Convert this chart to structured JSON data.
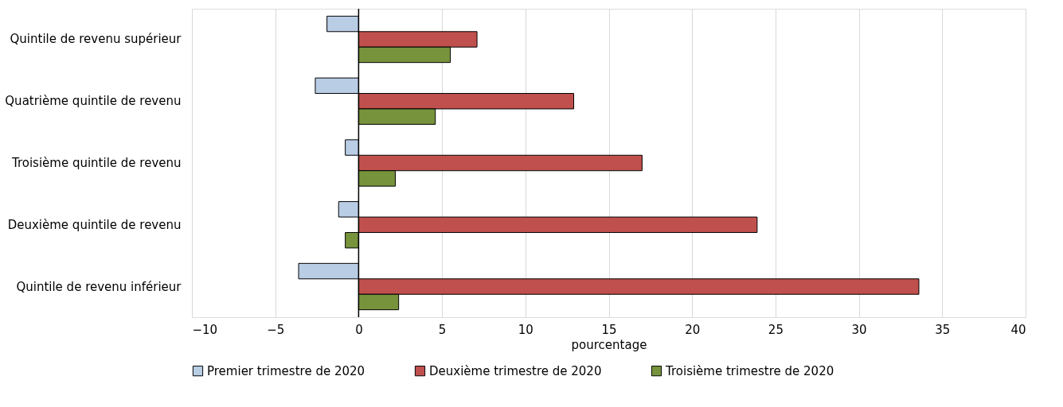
{
  "chart_data": {
    "type": "bar",
    "orientation": "horizontal",
    "xlabel": "pourcentage",
    "categories": [
      "Quintile de revenu supérieur",
      "Quatrième quintile de revenu",
      "Troisième quintile de revenu",
      "Deuxième quintile de revenu",
      "Quintile de revenu inférieur"
    ],
    "series": [
      {
        "name": "Premier trimestre de 2020",
        "color": "#b9cde5",
        "values": [
          -1.9,
          -2.6,
          -0.8,
          -1.2,
          -3.6
        ]
      },
      {
        "name": "Deuxième trimestre de 2020",
        "color": "#c0504d",
        "values": [
          7.1,
          12.9,
          17.0,
          23.9,
          33.6
        ]
      },
      {
        "name": "Troisième trimestre de 2020",
        "color": "#77933c",
        "values": [
          5.5,
          4.6,
          2.2,
          -0.8,
          2.4
        ]
      }
    ],
    "xlim": [
      -10,
      40
    ],
    "xticks": [
      -10,
      -5,
      0,
      5,
      10,
      15,
      20,
      25,
      30,
      35,
      40
    ],
    "grid": "x",
    "legend": "bottom"
  }
}
